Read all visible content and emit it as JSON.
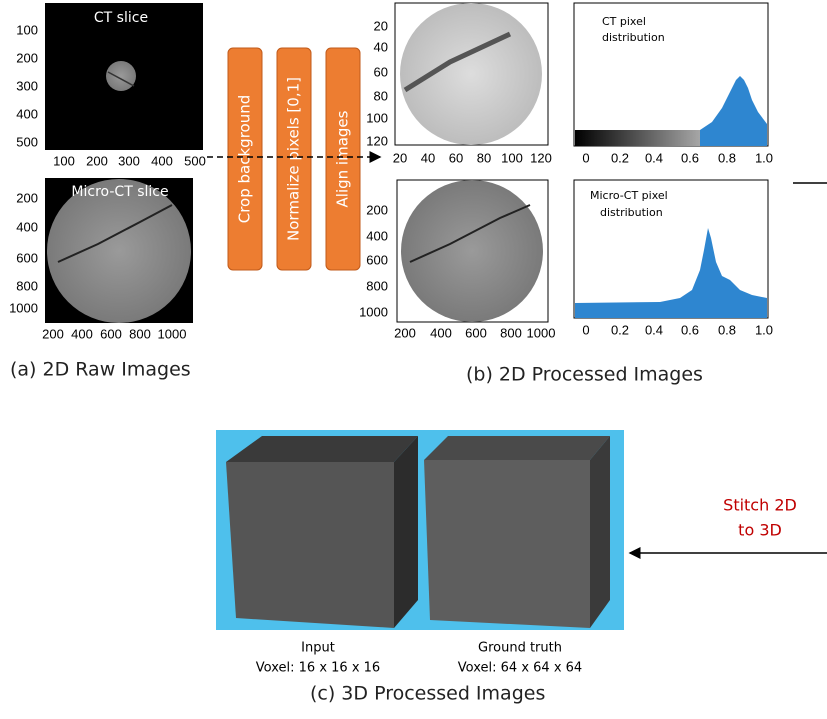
{
  "panels": {
    "raw_ct": {
      "label": "CT slice",
      "yticks": [
        "100",
        "200",
        "300",
        "400",
        "500"
      ],
      "xticks": [
        "100",
        "200",
        "300",
        "400",
        "500"
      ]
    },
    "raw_microct": {
      "label": "Micro-CT slice",
      "yticks": [
        "200",
        "400",
        "600",
        "800",
        "1000"
      ],
      "xticks": [
        "200",
        "400",
        "600",
        "800",
        "1000"
      ]
    },
    "processed_ct": {
      "yticks": [
        "20",
        "40",
        "60",
        "80",
        "100",
        "120"
      ],
      "xticks": [
        "20",
        "40",
        "60",
        "80",
        "100",
        "120"
      ]
    },
    "processed_microct": {
      "yticks": [
        "200",
        "400",
        "600",
        "800",
        "1000"
      ],
      "xticks": [
        "200",
        "400",
        "600",
        "800",
        "1000"
      ]
    },
    "hist_ct": {
      "title": [
        "CT pixel",
        "distribution"
      ],
      "xticks": [
        "0",
        "0.2",
        "0.4",
        "0.6",
        "0.8",
        "1.0"
      ]
    },
    "hist_microct": {
      "title": [
        "Micro-CT pixel",
        "distribution"
      ],
      "xticks": [
        "0",
        "0.2",
        "0.4",
        "0.6",
        "0.8",
        "1.0"
      ]
    }
  },
  "steps": [
    "Crop background",
    "Normalize pixels [0,1]",
    "Align images"
  ],
  "captions": {
    "a": "(a) 2D Raw Images",
    "b": "(b) 2D Processed Images",
    "c": "(c) 3D Processed Images"
  },
  "stitch": [
    "Stitch 2D",
    "to 3D"
  ],
  "cubes": {
    "input": [
      "Input",
      "Voxel: 16 x 16 x 16"
    ],
    "ground_truth": [
      "Ground truth",
      "Voxel: 64 x 64 x 64"
    ]
  }
}
